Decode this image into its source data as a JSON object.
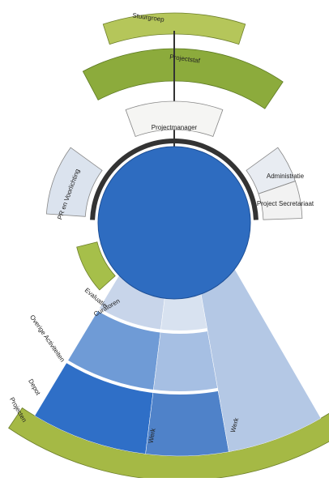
{
  "labels": {
    "steering": "Stuurgroep",
    "staff": "Projectstaf",
    "manager": "Projectmanager",
    "pr": "PR en Voorlichting",
    "admin": "Administratie",
    "secretariat": "Project Secretariaat",
    "evaluation": "Evaluatie",
    "curators": "Curatoren",
    "other": "Overige Activiteiten",
    "depot": "Depot",
    "projects": "Projecten",
    "work_mid": "Werk",
    "work_right": "Werk"
  }
}
